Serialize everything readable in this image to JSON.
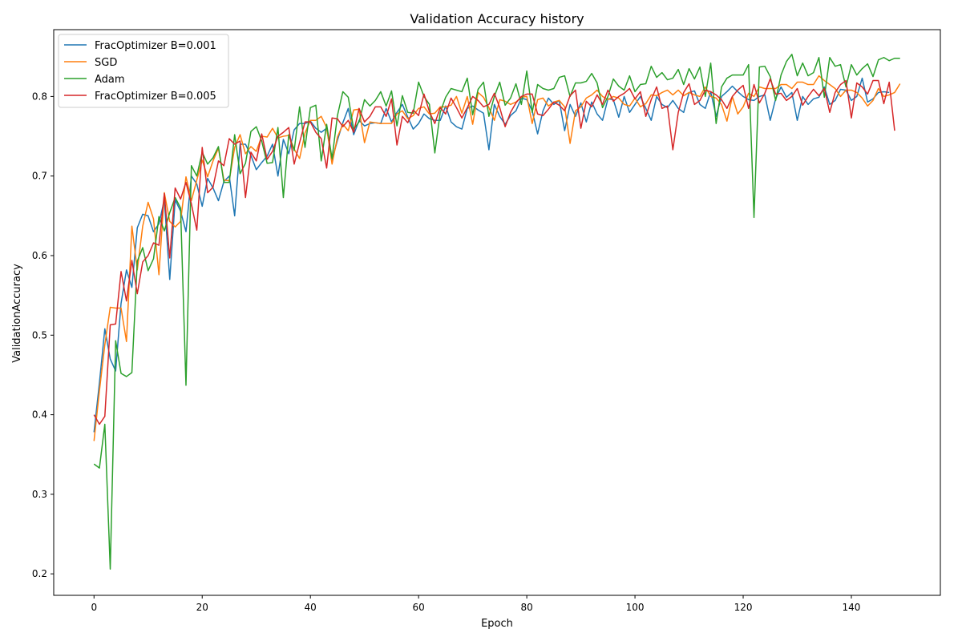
{
  "chart_data": {
    "type": "line",
    "title": "Validation Accuracy history",
    "xlabel": "Epoch",
    "ylabel": "ValidationAccuracy",
    "xlim": [
      -7.45,
      156.45
    ],
    "ylim": [
      0.173,
      0.884
    ],
    "xticks": [
      0,
      20,
      40,
      60,
      80,
      100,
      120,
      140
    ],
    "yticks": [
      0.2,
      0.3,
      0.4,
      0.5,
      0.6,
      0.7,
      0.8
    ],
    "grid": false,
    "legend_position": "upper-left",
    "series": [
      {
        "name": "FracOptimizer B=0.001",
        "color": "#1f77b4",
        "values": [
          0.378,
          0.44,
          0.508,
          0.47,
          0.455,
          0.54,
          0.582,
          0.56,
          0.635,
          0.652,
          0.65,
          0.63,
          0.64,
          0.67,
          0.57,
          0.67,
          0.656,
          0.63,
          0.7,
          0.69,
          0.662,
          0.697,
          0.685,
          0.669,
          0.693,
          0.7,
          0.65,
          0.74,
          0.74,
          0.726,
          0.708,
          0.717,
          0.725,
          0.74,
          0.7,
          0.746,
          0.728,
          0.758,
          0.766,
          0.766,
          0.769,
          0.76,
          0.755,
          0.76,
          0.72,
          0.745,
          0.767,
          0.785,
          0.752,
          0.77,
          0.763,
          0.766,
          0.767,
          0.766,
          0.785,
          0.768,
          0.78,
          0.79,
          0.774,
          0.759,
          0.766,
          0.778,
          0.772,
          0.77,
          0.77,
          0.788,
          0.768,
          0.762,
          0.759,
          0.785,
          0.788,
          0.783,
          0.779,
          0.733,
          0.79,
          0.775,
          0.765,
          0.776,
          0.782,
          0.798,
          0.796,
          0.782,
          0.753,
          0.782,
          0.798,
          0.79,
          0.795,
          0.757,
          0.79,
          0.775,
          0.792,
          0.768,
          0.793,
          0.778,
          0.77,
          0.797,
          0.796,
          0.774,
          0.8,
          0.78,
          0.79,
          0.8,
          0.785,
          0.77,
          0.8,
          0.79,
          0.786,
          0.795,
          0.785,
          0.78,
          0.805,
          0.807,
          0.79,
          0.785,
          0.806,
          0.775,
          0.8,
          0.806,
          0.813,
          0.806,
          0.8,
          0.796,
          0.795,
          0.8,
          0.802,
          0.77,
          0.797,
          0.812,
          0.799,
          0.805,
          0.77,
          0.8,
          0.79,
          0.797,
          0.799,
          0.812,
          0.79,
          0.795,
          0.809,
          0.808,
          0.795,
          0.8,
          0.823,
          0.793,
          0.797,
          0.805,
          0.806,
          0.805
        ],
        "note": "",
        "_placeholder": ""
      },
      {
        "name": "SGD",
        "color": "#ff7f0e",
        "values": [
          0.367,
          0.43,
          0.488,
          0.535,
          0.534,
          0.534,
          0.492,
          0.637,
          0.582,
          0.637,
          0.667,
          0.646,
          0.576,
          0.679,
          0.643,
          0.636,
          0.643,
          0.699,
          0.669,
          0.695,
          0.72,
          0.699,
          0.719,
          0.735,
          0.695,
          0.694,
          0.736,
          0.752,
          0.728,
          0.737,
          0.731,
          0.75,
          0.749,
          0.76,
          0.748,
          0.75,
          0.751,
          0.734,
          0.722,
          0.754,
          0.77,
          0.77,
          0.775,
          0.761,
          0.715,
          0.749,
          0.765,
          0.757,
          0.783,
          0.784,
          0.742,
          0.768,
          0.767,
          0.766,
          0.766,
          0.766,
          0.778,
          0.782,
          0.772,
          0.776,
          0.785,
          0.787,
          0.778,
          0.779,
          0.787,
          0.787,
          0.789,
          0.8,
          0.779,
          0.8,
          0.765,
          0.805,
          0.799,
          0.786,
          0.77,
          0.796,
          0.794,
          0.79,
          0.793,
          0.799,
          0.8,
          0.766,
          0.796,
          0.798,
          0.788,
          0.793,
          0.795,
          0.787,
          0.741,
          0.782,
          0.787,
          0.798,
          0.802,
          0.808,
          0.8,
          0.796,
          0.8,
          0.798,
          0.79,
          0.788,
          0.798,
          0.787,
          0.791,
          0.802,
          0.801,
          0.805,
          0.808,
          0.802,
          0.808,
          0.801,
          0.805,
          0.802,
          0.8,
          0.812,
          0.8,
          0.798,
          0.79,
          0.769,
          0.8,
          0.778,
          0.787,
          0.804,
          0.8,
          0.812,
          0.81,
          0.81,
          0.81,
          0.815,
          0.815,
          0.81,
          0.818,
          0.818,
          0.815,
          0.815,
          0.826,
          0.82,
          0.815,
          0.81,
          0.8,
          0.808,
          0.808,
          0.805,
          0.798,
          0.788,
          0.795,
          0.81,
          0.8,
          0.802,
          0.805,
          0.816
        ],
        "_placeholder": ""
      },
      {
        "name": "Adam",
        "color": "#2ca02c",
        "values": [
          0.338,
          0.333,
          0.388,
          0.206,
          0.493,
          0.452,
          0.448,
          0.453,
          0.593,
          0.61,
          0.581,
          0.596,
          0.649,
          0.631,
          0.654,
          0.673,
          0.66,
          0.437,
          0.713,
          0.7,
          0.73,
          0.715,
          0.723,
          0.737,
          0.692,
          0.692,
          0.752,
          0.703,
          0.716,
          0.756,
          0.762,
          0.744,
          0.716,
          0.717,
          0.761,
          0.673,
          0.752,
          0.732,
          0.787,
          0.736,
          0.786,
          0.789,
          0.719,
          0.765,
          0.722,
          0.776,
          0.806,
          0.799,
          0.759,
          0.768,
          0.796,
          0.788,
          0.795,
          0.806,
          0.788,
          0.807,
          0.763,
          0.801,
          0.78,
          0.779,
          0.818,
          0.8,
          0.79,
          0.729,
          0.78,
          0.799,
          0.81,
          0.808,
          0.806,
          0.823,
          0.777,
          0.809,
          0.818,
          0.775,
          0.8,
          0.818,
          0.789,
          0.798,
          0.816,
          0.79,
          0.832,
          0.78,
          0.815,
          0.81,
          0.808,
          0.81,
          0.824,
          0.826,
          0.8,
          0.817,
          0.817,
          0.819,
          0.829,
          0.817,
          0.786,
          0.8,
          0.822,
          0.813,
          0.808,
          0.826,
          0.806,
          0.815,
          0.816,
          0.838,
          0.824,
          0.83,
          0.821,
          0.823,
          0.834,
          0.815,
          0.835,
          0.822,
          0.837,
          0.8,
          0.842,
          0.766,
          0.812,
          0.823,
          0.827,
          0.827,
          0.827,
          0.84,
          0.648,
          0.837,
          0.838,
          0.825,
          0.795,
          0.827,
          0.844,
          0.853,
          0.826,
          0.842,
          0.826,
          0.83,
          0.849,
          0.799,
          0.849,
          0.838,
          0.84,
          0.812,
          0.84,
          0.827,
          0.835,
          0.841,
          0.825,
          0.846,
          0.849,
          0.845,
          0.848,
          0.848
        ],
        "_placeholder": ""
      },
      {
        "name": "FracOptimizer B=0.005",
        "color": "#d62728",
        "values": [
          0.4,
          0.388,
          0.398,
          0.513,
          0.514,
          0.58,
          0.543,
          0.594,
          0.552,
          0.592,
          0.6,
          0.616,
          0.613,
          0.678,
          0.597,
          0.685,
          0.671,
          0.692,
          0.665,
          0.632,
          0.736,
          0.679,
          0.686,
          0.719,
          0.713,
          0.747,
          0.74,
          0.744,
          0.673,
          0.73,
          0.719,
          0.753,
          0.721,
          0.731,
          0.75,
          0.755,
          0.761,
          0.715,
          0.742,
          0.768,
          0.768,
          0.755,
          0.747,
          0.71,
          0.773,
          0.772,
          0.762,
          0.77,
          0.755,
          0.785,
          0.768,
          0.775,
          0.787,
          0.787,
          0.775,
          0.797,
          0.739,
          0.775,
          0.767,
          0.783,
          0.776,
          0.803,
          0.781,
          0.766,
          0.786,
          0.778,
          0.798,
          0.786,
          0.773,
          0.786,
          0.8,
          0.795,
          0.787,
          0.79,
          0.804,
          0.786,
          0.762,
          0.78,
          0.792,
          0.8,
          0.803,
          0.803,
          0.778,
          0.776,
          0.784,
          0.793,
          0.789,
          0.782,
          0.801,
          0.808,
          0.76,
          0.794,
          0.787,
          0.802,
          0.79,
          0.808,
          0.794,
          0.8,
          0.804,
          0.81,
          0.797,
          0.806,
          0.775,
          0.796,
          0.812,
          0.785,
          0.788,
          0.733,
          0.78,
          0.805,
          0.816,
          0.79,
          0.795,
          0.808,
          0.806,
          0.802,
          0.796,
          0.785,
          0.8,
          0.808,
          0.814,
          0.785,
          0.815,
          0.792,
          0.804,
          0.822,
          0.803,
          0.804,
          0.795,
          0.8,
          0.81,
          0.789,
          0.8,
          0.809,
          0.801,
          0.81,
          0.78,
          0.805,
          0.815,
          0.82,
          0.773,
          0.817,
          0.812,
          0.803,
          0.82,
          0.82,
          0.791,
          0.818,
          0.757
        ],
        "_placeholder": ""
      }
    ]
  }
}
